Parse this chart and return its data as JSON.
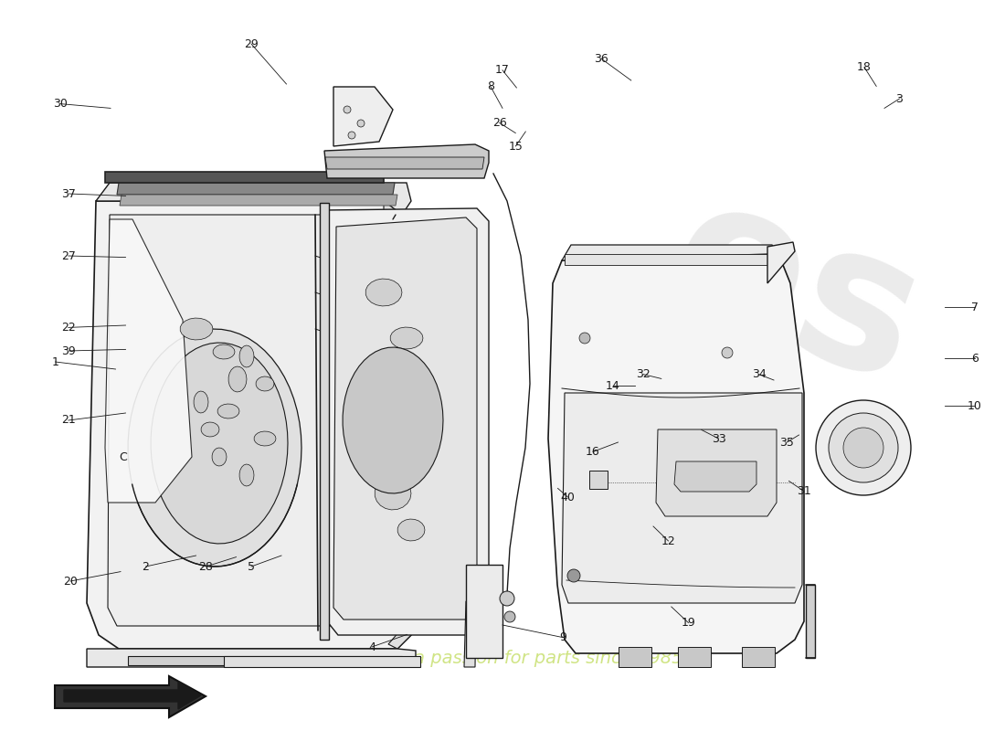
{
  "bg_color": "#ffffff",
  "lc": "#1a1a1a",
  "lw": 1.0,
  "watermark_color": "#e8e8e8",
  "watermark_yellow": "#e8f0a0",
  "callouts": [
    [
      1,
      0.055,
      0.495,
      0.115,
      0.505
    ],
    [
      2,
      0.145,
      0.775,
      0.195,
      0.76
    ],
    [
      3,
      0.895,
      0.135,
      0.88,
      0.148
    ],
    [
      4,
      0.37,
      0.885,
      0.405,
      0.868
    ],
    [
      5,
      0.25,
      0.775,
      0.28,
      0.76
    ],
    [
      6,
      0.97,
      0.49,
      0.94,
      0.49
    ],
    [
      7,
      0.97,
      0.42,
      0.94,
      0.42
    ],
    [
      8,
      0.488,
      0.118,
      0.5,
      0.148
    ],
    [
      9,
      0.56,
      0.872,
      0.5,
      0.855
    ],
    [
      10,
      0.97,
      0.555,
      0.94,
      0.555
    ],
    [
      12,
      0.665,
      0.74,
      0.65,
      0.72
    ],
    [
      14,
      0.61,
      0.528,
      0.632,
      0.528
    ],
    [
      15,
      0.513,
      0.2,
      0.523,
      0.18
    ],
    [
      16,
      0.59,
      0.618,
      0.615,
      0.605
    ],
    [
      17,
      0.5,
      0.096,
      0.514,
      0.12
    ],
    [
      18,
      0.86,
      0.092,
      0.872,
      0.118
    ],
    [
      19,
      0.685,
      0.852,
      0.668,
      0.83
    ],
    [
      20,
      0.07,
      0.795,
      0.12,
      0.782
    ],
    [
      21,
      0.068,
      0.575,
      0.125,
      0.565
    ],
    [
      22,
      0.068,
      0.448,
      0.125,
      0.445
    ],
    [
      26,
      0.497,
      0.168,
      0.513,
      0.182
    ],
    [
      27,
      0.068,
      0.35,
      0.125,
      0.352
    ],
    [
      28,
      0.205,
      0.775,
      0.235,
      0.762
    ],
    [
      29,
      0.25,
      0.06,
      0.285,
      0.115
    ],
    [
      30,
      0.06,
      0.142,
      0.11,
      0.148
    ],
    [
      31,
      0.8,
      0.672,
      0.785,
      0.658
    ],
    [
      32,
      0.64,
      0.512,
      0.658,
      0.518
    ],
    [
      33,
      0.715,
      0.6,
      0.698,
      0.588
    ],
    [
      34,
      0.755,
      0.512,
      0.77,
      0.52
    ],
    [
      35,
      0.783,
      0.605,
      0.795,
      0.595
    ],
    [
      36,
      0.598,
      0.08,
      0.628,
      0.11
    ],
    [
      37,
      0.068,
      0.265,
      0.125,
      0.268
    ],
    [
      39,
      0.068,
      0.48,
      0.125,
      0.478
    ],
    [
      40,
      0.565,
      0.68,
      0.555,
      0.668
    ]
  ]
}
